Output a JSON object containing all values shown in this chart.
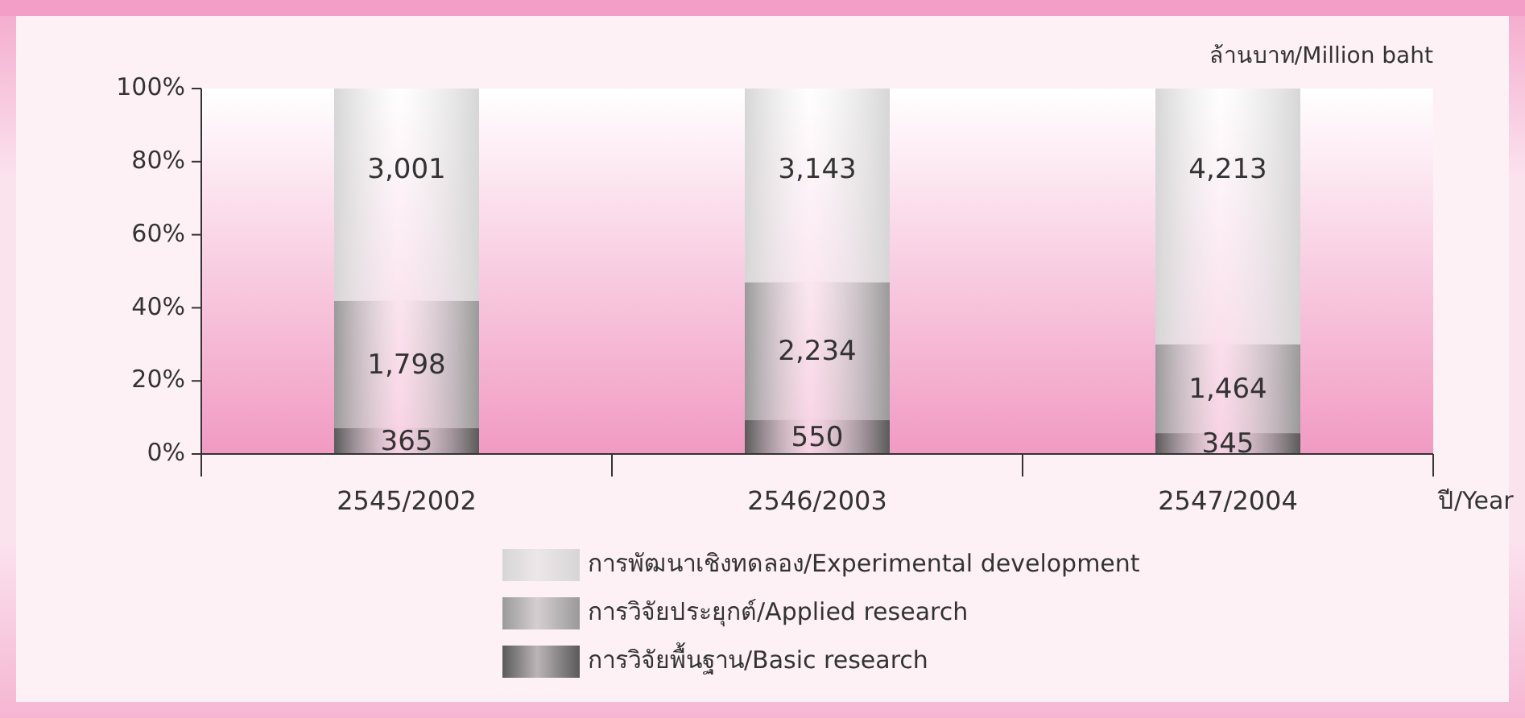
{
  "chart_data": {
    "type": "bar",
    "stacked": true,
    "ylabel": "ล้านบาท/Million baht",
    "xlabel": "ปี/Year",
    "categories": [
      "2545/2002",
      "2546/2003",
      "2547/2004"
    ],
    "series": [
      {
        "name": "การวิจัยพื้นฐาน/Basic research",
        "color": "#5a5a5a",
        "values": [
          7.1,
          9.3,
          5.7
        ]
      },
      {
        "name": "การวิจัยประยุกต์/Applied research",
        "color": "#9a9a9a",
        "values": [
          34.8,
          37.7,
          24.3
        ]
      },
      {
        "name": "การพัฒนาเชิงทดลอง/Experimental development",
        "color": "#d6d6d6",
        "values": [
          58.1,
          53.0,
          70.0
        ]
      }
    ],
    "ylim": [
      0,
      100
    ],
    "yticks": [
      {
        "value": 0,
        "label": "0%"
      },
      {
        "value": 20,
        "label": "20%"
      },
      {
        "value": 40,
        "label": "40%"
      },
      {
        "value": 60,
        "label": "60%"
      },
      {
        "value": 80,
        "label": "80%"
      },
      {
        "value": 100,
        "label": "100%"
      }
    ],
    "annotations": [
      {
        "text": "365",
        "x": "2545/2002",
        "y": 7.1
      },
      {
        "text": "550",
        "x": "2546/2003",
        "y": 9.3
      },
      {
        "text": "345",
        "x": "2547/2004",
        "y": 5.7
      },
      {
        "text": "1,798",
        "x": "2545/2002",
        "y": 41.9
      },
      {
        "text": "2,234",
        "x": "2546/2003",
        "y": 47.0
      },
      {
        "text": "1,464",
        "x": "2547/2004",
        "y": 30.0
      },
      {
        "text": "3,001",
        "x": "2545/2002",
        "y": 100
      },
      {
        "text": "3,143",
        "x": "2546/2003",
        "y": 100
      },
      {
        "text": "4,213",
        "x": "2547/2004",
        "y": 100
      }
    ],
    "grid": false,
    "legend": "bottom"
  }
}
